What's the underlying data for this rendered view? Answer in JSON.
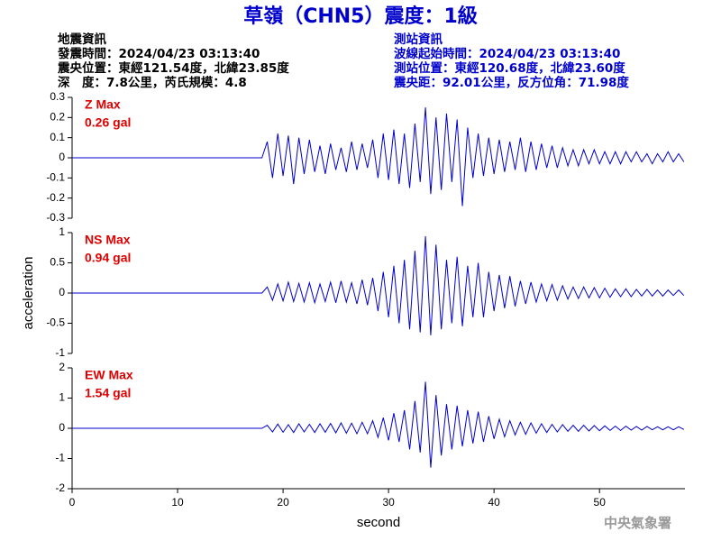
{
  "header": {
    "title": "草嶺（CHN5）震度：1級",
    "left_info": [
      "地震資訊",
      "發震時間：2024/04/23 03:13:40",
      "震央位置：東經121.54度，北緯23.85度",
      "深　度：7.8公里，芮氏規模：4.8"
    ],
    "right_info": [
      "測站資訊",
      "波線起始時間：2024/04/23 03:13:40",
      "測站位置：東經120.68度，北緯23.60度",
      "震央距：92.01公里，反方位角：71.98度"
    ],
    "watermark": "中央氣象署"
  },
  "chart_data": [
    {
      "type": "line",
      "annotations": [
        "Z Max",
        "0.26 gal"
      ],
      "x": [
        0,
        0.5,
        1,
        1.5,
        2,
        2.5,
        3,
        3.5,
        4,
        4.5,
        5,
        5.5,
        6,
        6.5,
        7,
        7.5,
        8,
        8.5,
        9,
        9.5,
        10,
        10.5,
        11,
        11.5,
        12,
        12.5,
        13,
        13.5,
        14,
        14.5,
        15,
        15.5,
        16,
        16.5,
        17,
        17.5,
        18,
        18.5,
        19,
        19.5,
        20,
        20.5,
        21,
        21.5,
        22,
        22.5,
        23,
        23.5,
        24,
        24.5,
        25,
        25.5,
        26,
        26.5,
        27,
        27.5,
        28,
        28.5,
        29,
        29.5,
        30,
        30.5,
        31,
        31.5,
        32,
        32.5,
        33,
        33.5,
        34,
        34.5,
        35,
        35.5,
        36,
        36.5,
        37,
        37.5,
        38,
        38.5,
        39,
        39.5,
        40,
        40.5,
        41,
        41.5,
        42,
        42.5,
        43,
        43.5,
        44,
        44.5,
        45,
        45.5,
        46,
        46.5,
        47,
        47.5,
        48,
        48.5,
        49,
        49.5,
        50,
        50.5,
        51,
        51.5,
        52,
        52.5,
        53,
        53.5,
        54,
        54.5,
        55,
        55.5,
        56,
        56.5,
        57,
        57.5,
        58
      ],
      "series": [
        {
          "color": "#0000cc",
          "values": [
            0,
            0,
            0,
            0,
            0,
            0,
            0,
            0,
            0,
            0,
            0,
            0,
            0,
            0,
            0,
            0,
            0,
            0,
            0,
            0,
            0,
            0,
            0,
            0,
            0,
            0,
            0,
            0,
            0,
            0,
            0,
            0,
            0,
            0,
            0,
            0,
            0,
            0.08,
            -0.1,
            0.12,
            -0.09,
            0.11,
            -0.13,
            0.1,
            -0.08,
            0.09,
            -0.07,
            0.06,
            -0.08,
            0.07,
            -0.06,
            0.05,
            -0.07,
            0.08,
            -0.06,
            0.07,
            -0.05,
            0.09,
            -0.1,
            0.12,
            -0.11,
            0.14,
            -0.13,
            0.12,
            -0.15,
            0.17,
            -0.12,
            0.25,
            -0.18,
            0.2,
            -0.16,
            0.22,
            -0.12,
            0.19,
            -0.24,
            0.15,
            -0.1,
            0.12,
            -0.09,
            0.1,
            -0.08,
            0.09,
            -0.07,
            0.08,
            -0.06,
            0.1,
            -0.07,
            0.08,
            -0.06,
            0.07,
            -0.05,
            0.06,
            -0.05,
            0.05,
            -0.04,
            0.04,
            -0.04,
            0.04,
            -0.03,
            0.04,
            -0.03,
            0.03,
            -0.03,
            0.03,
            -0.03,
            0.03,
            -0.02,
            0.03,
            -0.02,
            0.02,
            -0.03,
            0.02,
            -0.02,
            0.03,
            -0.02,
            0.02,
            -0.02
          ]
        }
      ],
      "xlim": [
        0,
        58.1
      ],
      "ylim": [
        -0.3,
        0.3
      ],
      "yticks": [
        0.3,
        0.2,
        0.1,
        0,
        -0.1,
        -0.2,
        -0.3
      ]
    },
    {
      "type": "line",
      "annotations": [
        "NS Max",
        "0.94 gal"
      ],
      "y_label": "acceleration",
      "x": [
        0,
        0.5,
        1,
        1.5,
        2,
        2.5,
        3,
        3.5,
        4,
        4.5,
        5,
        5.5,
        6,
        6.5,
        7,
        7.5,
        8,
        8.5,
        9,
        9.5,
        10,
        10.5,
        11,
        11.5,
        12,
        12.5,
        13,
        13.5,
        14,
        14.5,
        15,
        15.5,
        16,
        16.5,
        17,
        17.5,
        18,
        18.5,
        19,
        19.5,
        20,
        20.5,
        21,
        21.5,
        22,
        22.5,
        23,
        23.5,
        24,
        24.5,
        25,
        25.5,
        26,
        26.5,
        27,
        27.5,
        28,
        28.5,
        29,
        29.5,
        30,
        30.5,
        31,
        31.5,
        32,
        32.5,
        33,
        33.5,
        34,
        34.5,
        35,
        35.5,
        36,
        36.5,
        37,
        37.5,
        38,
        38.5,
        39,
        39.5,
        40,
        40.5,
        41,
        41.5,
        42,
        42.5,
        43,
        43.5,
        44,
        44.5,
        45,
        45.5,
        46,
        46.5,
        47,
        47.5,
        48,
        48.5,
        49,
        49.5,
        50,
        50.5,
        51,
        51.5,
        52,
        52.5,
        53,
        53.5,
        54,
        54.5,
        55,
        55.5,
        56,
        56.5,
        57,
        57.5,
        58
      ],
      "series": [
        {
          "color": "#0000cc",
          "values": [
            0,
            0,
            0,
            0,
            0,
            0,
            0,
            0,
            0,
            0,
            0,
            0,
            0,
            0,
            0,
            0,
            0,
            0,
            0,
            0,
            0,
            0,
            0,
            0,
            0,
            0,
            0,
            0,
            0,
            0,
            0,
            0,
            0,
            0,
            0,
            0,
            0,
            0.1,
            -0.12,
            0.15,
            -0.13,
            0.18,
            -0.14,
            0.16,
            -0.15,
            0.17,
            -0.16,
            0.15,
            -0.14,
            0.18,
            -0.16,
            0.2,
            -0.15,
            0.17,
            -0.18,
            0.22,
            -0.2,
            0.25,
            -0.3,
            0.35,
            -0.4,
            0.45,
            -0.5,
            0.55,
            -0.6,
            0.7,
            -0.65,
            0.94,
            -0.7,
            0.8,
            -0.6,
            0.55,
            -0.5,
            0.6,
            -0.55,
            0.45,
            -0.4,
            0.5,
            -0.4,
            0.35,
            -0.3,
            0.3,
            -0.25,
            0.28,
            -0.22,
            0.2,
            -0.18,
            0.18,
            -0.15,
            0.15,
            -0.13,
            0.14,
            -0.12,
            0.12,
            -0.1,
            0.1,
            -0.09,
            0.1,
            -0.08,
            0.09,
            -0.08,
            0.08,
            -0.07,
            0.07,
            -0.06,
            0.07,
            -0.06,
            0.06,
            -0.05,
            0.06,
            -0.05,
            0.05,
            -0.05,
            0.05,
            -0.04,
            0.05,
            -0.04
          ]
        }
      ],
      "xlim": [
        0,
        58.1
      ],
      "ylim": [
        -1,
        1
      ],
      "yticks": [
        1,
        0.5,
        0,
        -0.5,
        -1
      ]
    },
    {
      "type": "line",
      "annotations": [
        "EW Max",
        "1.54 gal"
      ],
      "x_label": "second",
      "x": [
        0,
        0.5,
        1,
        1.5,
        2,
        2.5,
        3,
        3.5,
        4,
        4.5,
        5,
        5.5,
        6,
        6.5,
        7,
        7.5,
        8,
        8.5,
        9,
        9.5,
        10,
        10.5,
        11,
        11.5,
        12,
        12.5,
        13,
        13.5,
        14,
        14.5,
        15,
        15.5,
        16,
        16.5,
        17,
        17.5,
        18,
        18.5,
        19,
        19.5,
        20,
        20.5,
        21,
        21.5,
        22,
        22.5,
        23,
        23.5,
        24,
        24.5,
        25,
        25.5,
        26,
        26.5,
        27,
        27.5,
        28,
        28.5,
        29,
        29.5,
        30,
        30.5,
        31,
        31.5,
        32,
        32.5,
        33,
        33.5,
        34,
        34.5,
        35,
        35.5,
        36,
        36.5,
        37,
        37.5,
        38,
        38.5,
        39,
        39.5,
        40,
        40.5,
        41,
        41.5,
        42,
        42.5,
        43,
        43.5,
        44,
        44.5,
        45,
        45.5,
        46,
        46.5,
        47,
        47.5,
        48,
        48.5,
        49,
        49.5,
        50,
        50.5,
        51,
        51.5,
        52,
        52.5,
        53,
        53.5,
        54,
        54.5,
        55,
        55.5,
        56,
        56.5,
        57,
        57.5,
        58
      ],
      "series": [
        {
          "color": "#0000cc",
          "values": [
            0,
            0,
            0,
            0,
            0,
            0,
            0,
            0,
            0,
            0,
            0,
            0,
            0,
            0,
            0,
            0,
            0,
            0,
            0,
            0,
            0,
            0,
            0,
            0,
            0,
            0,
            0,
            0,
            0,
            0,
            0,
            0,
            0,
            0,
            0,
            0,
            0,
            0.1,
            -0.12,
            0.14,
            -0.13,
            0.12,
            -0.14,
            0.15,
            -0.12,
            0.13,
            -0.14,
            0.15,
            -0.13,
            0.16,
            -0.15,
            0.18,
            -0.16,
            0.17,
            -0.18,
            0.2,
            -0.18,
            0.25,
            -0.3,
            0.35,
            -0.4,
            0.5,
            -0.45,
            0.6,
            -0.7,
            0.9,
            -0.8,
            1.54,
            -1.3,
            1.1,
            -0.9,
            0.8,
            -0.7,
            0.75,
            -0.6,
            0.6,
            -0.5,
            0.55,
            -0.45,
            0.4,
            -0.35,
            0.3,
            -0.28,
            0.25,
            -0.22,
            0.2,
            -0.2,
            0.18,
            -0.16,
            0.15,
            -0.14,
            0.13,
            -0.12,
            0.12,
            -0.1,
            0.1,
            -0.1,
            0.1,
            -0.09,
            0.09,
            -0.08,
            0.08,
            -0.07,
            0.07,
            -0.07,
            0.07,
            -0.06,
            0.06,
            -0.06,
            0.06,
            -0.05,
            0.05,
            -0.05,
            0.05,
            -0.05,
            0.05,
            -0.04
          ]
        }
      ],
      "xlim": [
        0,
        58.1
      ],
      "ylim": [
        -2,
        2
      ],
      "yticks": [
        2,
        1,
        0,
        -1,
        -2
      ],
      "xticks": [
        0,
        10,
        20,
        30,
        40,
        50
      ]
    }
  ]
}
